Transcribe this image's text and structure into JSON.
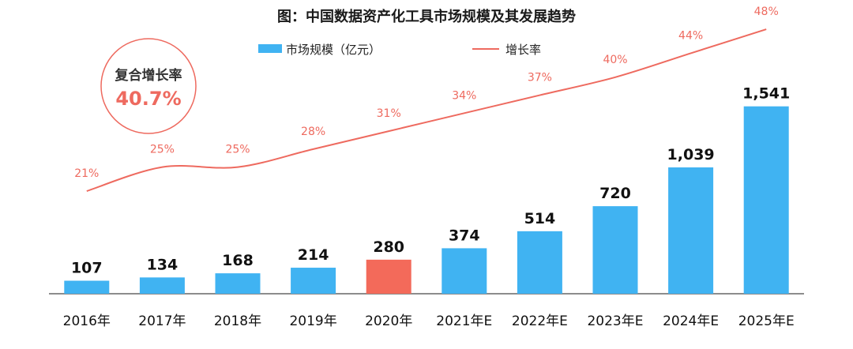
{
  "chart_data": {
    "type": "bar",
    "title": "图：中国数据资产化工具市场规模及其发展趋势",
    "categories": [
      "2016年",
      "2017年",
      "2018年",
      "2019年",
      "2020年",
      "2021年E",
      "2022年E",
      "2023年E",
      "2024年E",
      "2025年E"
    ],
    "series": [
      {
        "name": "市场规模（亿元）",
        "type": "bar",
        "values": [
          107,
          134,
          168,
          214,
          280,
          374,
          514,
          720,
          1039,
          1541
        ],
        "value_labels": [
          "107",
          "134",
          "168",
          "214",
          "280",
          "374",
          "514",
          "720",
          "1,039",
          "1,541"
        ],
        "color": "#40b3f2",
        "highlight_index": 4,
        "highlight_color": "#f36a5a"
      },
      {
        "name": "增长率",
        "type": "line",
        "values": [
          21,
          25,
          25,
          28,
          31,
          34,
          37,
          40,
          44,
          48
        ],
        "value_labels": [
          "21%",
          "25%",
          "25%",
          "28%",
          "31%",
          "34%",
          "37%",
          "40%",
          "44%",
          "48%"
        ],
        "color": "#ee6a5f"
      }
    ],
    "annotation": {
      "label": "复合增长率",
      "value": "40.7%",
      "border_color": "#ee6a5f"
    },
    "legend_placement": "top-center",
    "grid": false
  }
}
